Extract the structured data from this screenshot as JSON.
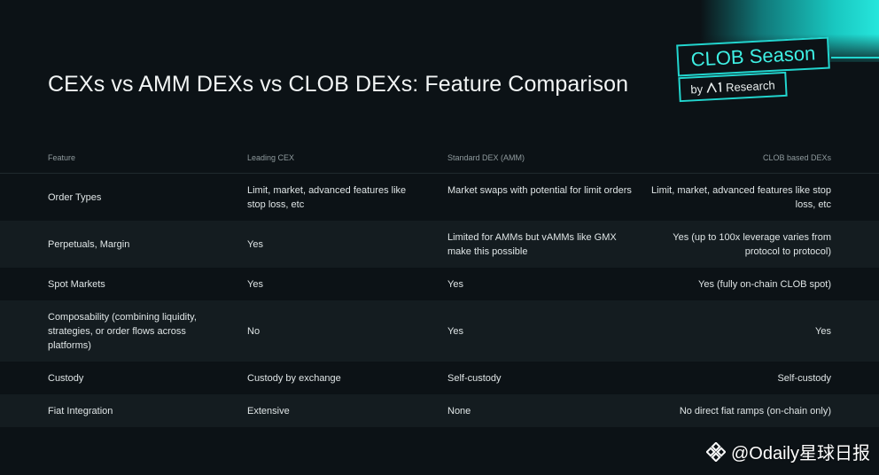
{
  "title": "CEXs vs AMM DEXs vs CLOB DEXs: Feature Comparison",
  "badge": {
    "main": "CLOB Season",
    "sub_prefix": "by",
    "sub_brand": "Research"
  },
  "table": {
    "headers": [
      "Feature",
      "Leading CEX",
      "Standard DEX (AMM)",
      "CLOB based DEXs"
    ],
    "rows": [
      [
        "Order Types",
        "Limit, market, advanced features like stop loss, etc",
        "Market swaps with potential for limit orders",
        "Limit, market, advanced features like stop loss, etc"
      ],
      [
        "Perpetuals, Margin",
        "Yes",
        "Limited for AMMs but vAMMs like GMX make this possible",
        "Yes (up to 100x leverage varies from protocol to protocol)"
      ],
      [
        "Spot Markets",
        "Yes",
        "Yes",
        "Yes (fully on-chain CLOB spot)"
      ],
      [
        "Composability (combining liquidity, strategies, or order flows across platforms)",
        "No",
        "Yes",
        "Yes"
      ],
      [
        "Custody",
        "Custody by exchange",
        "Self-custody",
        "Self-custody"
      ],
      [
        "Fiat Integration",
        "Extensive",
        "None",
        "No direct fiat ramps (on-chain only)"
      ]
    ]
  },
  "watermark": "@Odaily星球日报",
  "colors": {
    "background": "#0c1216",
    "accent": "#22d6cf",
    "alt_row": "#141c20"
  }
}
